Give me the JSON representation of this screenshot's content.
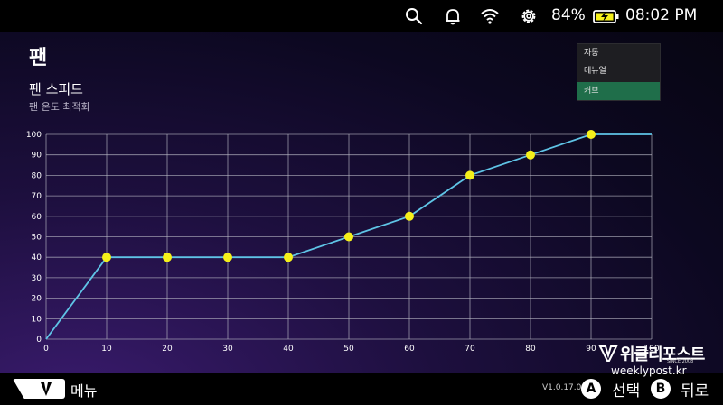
{
  "status": {
    "battery_percent": "84%",
    "time": "08:02 PM",
    "icons": [
      "search-icon",
      "bell-icon",
      "wifi-icon",
      "gear-icon",
      "battery-charging-icon"
    ]
  },
  "page": {
    "title": "팬",
    "section_title": "팬 스피드",
    "section_subtitle": "팬 온도 최적화"
  },
  "mode_menu": {
    "items": [
      {
        "label": "자동",
        "selected": false
      },
      {
        "label": "메뉴얼",
        "selected": false
      },
      {
        "label": "커브",
        "selected": true
      }
    ]
  },
  "colors": {
    "line": "#5fc4e6",
    "point": "#f5f01a",
    "grid": "#b8b8c4",
    "menu_selected": "#1f6e4a"
  },
  "chart_data": {
    "type": "line",
    "x": [
      0,
      10,
      20,
      30,
      40,
      50,
      60,
      70,
      80,
      90
    ],
    "y": [
      0,
      40,
      40,
      40,
      40,
      50,
      60,
      80,
      90,
      100
    ],
    "xlim": [
      0,
      100
    ],
    "ylim": [
      0,
      100
    ],
    "xticks": [
      "0",
      "10",
      "20",
      "30",
      "40",
      "50",
      "60",
      "70",
      "80",
      "90",
      "100"
    ],
    "yticks": [
      "0",
      "10",
      "20",
      "30",
      "40",
      "50",
      "60",
      "70",
      "80",
      "90",
      "100"
    ],
    "grid": true
  },
  "bottom": {
    "menu_label": "메뉴",
    "version": "V1.0.17.0",
    "a_key": "A",
    "a_label": "선택",
    "b_key": "B",
    "b_label": "뒤로"
  },
  "watermark": {
    "brand": "위클리포스트",
    "since": "SINCE 2008",
    "url": "weeklypost.kr"
  }
}
